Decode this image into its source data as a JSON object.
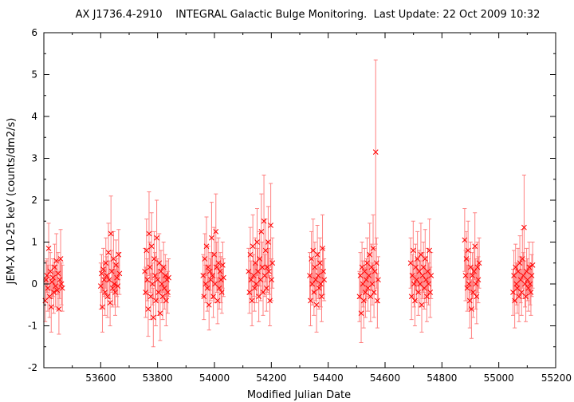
{
  "chart_data": {
    "type": "scatter",
    "title": "AX J1736.4-2910    INTEGRAL Galactic Bulge Monitoring.  Last Update: 22 Oct 2009 10:32",
    "xlabel": "Modified Julian Date",
    "ylabel": "JEM-X 10-25 keV (counts/dm2/s)",
    "xlim": [
      53400,
      55200
    ],
    "ylim": [
      -2,
      6
    ],
    "x_ticks": [
      "53600",
      "53800",
      "54000",
      "54200",
      "54400",
      "54600",
      "54800",
      "55000",
      "55200"
    ],
    "y_ticks": [
      "-2",
      "-1",
      "0",
      "1",
      "2",
      "3",
      "4",
      "5",
      "6"
    ],
    "grid": false,
    "legend": "none",
    "marker": "x",
    "colors": {
      "points": "#ff0000",
      "error_bars": "#ff8080",
      "axes": "#000000"
    },
    "series": [
      {
        "points": [
          [
            53405,
            -0.4,
            0.5
          ],
          [
            53408,
            0.1,
            0.45
          ],
          [
            53411,
            0.2,
            0.4
          ],
          [
            53414,
            -0.1,
            0.55
          ],
          [
            53417,
            0.85,
            0.6
          ],
          [
            53420,
            -0.3,
            0.5
          ],
          [
            53423,
            0.3,
            0.45
          ],
          [
            53426,
            -0.55,
            0.6
          ],
          [
            53429,
            0.05,
            0.4
          ],
          [
            53432,
            0.15,
            0.45
          ],
          [
            53435,
            -0.2,
            0.5
          ],
          [
            53438,
            0.4,
            0.55
          ],
          [
            53441,
            -0.05,
            0.5
          ],
          [
            53444,
            0.55,
            0.65
          ],
          [
            53447,
            -0.15,
            0.45
          ],
          [
            53450,
            0.25,
            0.5
          ],
          [
            53453,
            -0.6,
            0.6
          ],
          [
            53456,
            0.1,
            0.45
          ],
          [
            53459,
            0.6,
            0.7
          ],
          [
            53462,
            0.0,
            0.5
          ],
          [
            53465,
            -0.1,
            0.55
          ],
          [
            53600,
            -0.05,
            0.55
          ],
          [
            53603,
            0.25,
            0.45
          ],
          [
            53606,
            -0.55,
            0.6
          ],
          [
            53609,
            0.35,
            0.5
          ],
          [
            53612,
            0.1,
            0.4
          ],
          [
            53615,
            -0.2,
            0.55
          ],
          [
            53618,
            0.5,
            0.6
          ],
          [
            53621,
            0.2,
            0.45
          ],
          [
            53624,
            -0.3,
            0.5
          ],
          [
            53627,
            0.75,
            0.7
          ],
          [
            53630,
            0.1,
            0.45
          ],
          [
            53633,
            -0.45,
            0.55
          ],
          [
            53636,
            1.2,
            0.9
          ],
          [
            53639,
            0.3,
            0.5
          ],
          [
            53642,
            -0.1,
            0.45
          ],
          [
            53645,
            0.6,
            0.65
          ],
          [
            53648,
            0.0,
            0.5
          ],
          [
            53651,
            -0.2,
            0.55
          ],
          [
            53654,
            0.45,
            0.6
          ],
          [
            53657,
            0.15,
            0.45
          ],
          [
            53660,
            -0.05,
            0.5
          ],
          [
            53663,
            0.7,
            0.6
          ],
          [
            53666,
            0.25,
            0.5
          ],
          [
            53755,
            0.3,
            0.55
          ],
          [
            53758,
            -0.2,
            0.6
          ],
          [
            53761,
            0.8,
            0.75
          ],
          [
            53764,
            0.1,
            0.5
          ],
          [
            53767,
            -0.6,
            0.65
          ],
          [
            53770,
            1.2,
            1.0
          ],
          [
            53773,
            0.4,
            0.6
          ],
          [
            53776,
            -0.3,
            0.55
          ],
          [
            53779,
            0.9,
            0.8
          ],
          [
            53782,
            0.0,
            0.5
          ],
          [
            53785,
            -0.8,
            0.7
          ],
          [
            53788,
            0.6,
            0.65
          ],
          [
            53791,
            0.2,
            0.55
          ],
          [
            53794,
            -0.4,
            0.6
          ],
          [
            53797,
            1.1,
            0.9
          ],
          [
            53800,
            0.1,
            0.5
          ],
          [
            53803,
            -0.2,
            0.55
          ],
          [
            53806,
            0.5,
            0.7
          ],
          [
            53809,
            -0.7,
            0.65
          ],
          [
            53812,
            0.3,
            0.5
          ],
          [
            53815,
            0.0,
            0.45
          ],
          [
            53818,
            -0.3,
            0.55
          ],
          [
            53821,
            0.4,
            0.6
          ],
          [
            53824,
            -0.1,
            0.5
          ],
          [
            53827,
            0.2,
            0.5
          ],
          [
            53830,
            -0.4,
            0.6
          ],
          [
            53833,
            0.1,
            0.45
          ],
          [
            53836,
            -0.2,
            0.5
          ],
          [
            53839,
            0.15,
            0.45
          ],
          [
            53960,
            0.2,
            0.5
          ],
          [
            53963,
            -0.3,
            0.55
          ],
          [
            53966,
            0.6,
            0.6
          ],
          [
            53969,
            0.0,
            0.45
          ],
          [
            53972,
            0.9,
            0.7
          ],
          [
            53975,
            -0.1,
            0.55
          ],
          [
            53978,
            0.4,
            0.5
          ],
          [
            53981,
            -0.5,
            0.6
          ],
          [
            53984,
            0.3,
            0.45
          ],
          [
            53987,
            0.1,
            0.5
          ],
          [
            53990,
            1.1,
            0.85
          ],
          [
            53993,
            0.2,
            0.55
          ],
          [
            53996,
            -0.3,
            0.5
          ],
          [
            53999,
            0.7,
            0.65
          ],
          [
            54002,
            0.0,
            0.45
          ],
          [
            54005,
            1.25,
            0.9
          ],
          [
            54008,
            0.4,
            0.6
          ],
          [
            54011,
            -0.4,
            0.55
          ],
          [
            54014,
            0.5,
            0.6
          ],
          [
            54017,
            -0.1,
            0.5
          ],
          [
            54020,
            0.3,
            0.45
          ],
          [
            54023,
            0.1,
            0.55
          ],
          [
            54026,
            -0.2,
            0.5
          ],
          [
            54029,
            0.45,
            0.55
          ],
          [
            54032,
            0.15,
            0.45
          ],
          [
            54120,
            0.3,
            0.55
          ],
          [
            54123,
            -0.2,
            0.5
          ],
          [
            54126,
            0.7,
            0.65
          ],
          [
            54129,
            0.1,
            0.45
          ],
          [
            54132,
            -0.4,
            0.6
          ],
          [
            54135,
            0.9,
            0.75
          ],
          [
            54138,
            0.2,
            0.5
          ],
          [
            54141,
            -0.1,
            0.55
          ],
          [
            54144,
            0.5,
            0.6
          ],
          [
            54147,
            0.0,
            0.45
          ],
          [
            54150,
            1.0,
            0.8
          ],
          [
            54153,
            0.3,
            0.55
          ],
          [
            54156,
            -0.3,
            0.6
          ],
          [
            54159,
            0.6,
            0.65
          ],
          [
            54162,
            0.1,
            0.5
          ],
          [
            54165,
            1.25,
            0.9
          ],
          [
            54168,
            0.4,
            0.6
          ],
          [
            54171,
            -0.2,
            0.55
          ],
          [
            54174,
            1.5,
            1.1
          ],
          [
            54177,
            0.2,
            0.5
          ],
          [
            54180,
            0.8,
            0.75
          ],
          [
            54183,
            -0.1,
            0.55
          ],
          [
            54186,
            0.4,
            0.6
          ],
          [
            54189,
            1.0,
            0.85
          ],
          [
            54192,
            0.3,
            0.55
          ],
          [
            54195,
            -0.4,
            0.6
          ],
          [
            54198,
            1.4,
            1.0
          ],
          [
            54201,
            0.1,
            0.5
          ],
          [
            54204,
            0.5,
            0.6
          ],
          [
            54335,
            0.2,
            0.55
          ],
          [
            54338,
            -0.4,
            0.6
          ],
          [
            54341,
            0.6,
            0.65
          ],
          [
            54344,
            0.0,
            0.5
          ],
          [
            54347,
            0.8,
            0.75
          ],
          [
            54350,
            -0.2,
            0.55
          ],
          [
            54353,
            0.4,
            0.6
          ],
          [
            54356,
            0.1,
            0.5
          ],
          [
            54359,
            -0.5,
            0.65
          ],
          [
            54362,
            0.7,
            0.7
          ],
          [
            54365,
            0.2,
            0.55
          ],
          [
            54368,
            -0.1,
            0.5
          ],
          [
            54371,
            0.5,
            0.6
          ],
          [
            54374,
            0.0,
            0.55
          ],
          [
            54377,
            -0.3,
            0.6
          ],
          [
            54380,
            0.85,
            0.8
          ],
          [
            54383,
            0.3,
            0.55
          ],
          [
            54386,
            0.1,
            0.5
          ],
          [
            54510,
            -0.3,
            0.6
          ],
          [
            54513,
            0.2,
            0.55
          ],
          [
            54516,
            -0.7,
            0.7
          ],
          [
            54519,
            0.4,
            0.6
          ],
          [
            54522,
            0.0,
            0.55
          ],
          [
            54525,
            -0.4,
            0.65
          ],
          [
            54528,
            0.3,
            0.55
          ],
          [
            54531,
            -0.2,
            0.6
          ],
          [
            54534,
            0.1,
            0.5
          ],
          [
            54537,
            0.5,
            0.6
          ],
          [
            54540,
            -0.1,
            0.55
          ],
          [
            54543,
            0.2,
            0.5
          ],
          [
            54546,
            0.7,
            0.75
          ],
          [
            54549,
            -0.3,
            0.6
          ],
          [
            54552,
            0.4,
            0.55
          ],
          [
            54555,
            0.0,
            0.5
          ],
          [
            54558,
            0.85,
            0.8
          ],
          [
            54561,
            -0.2,
            0.6
          ],
          [
            54564,
            0.3,
            0.55
          ],
          [
            54567,
            3.15,
            2.2
          ],
          [
            54570,
            0.5,
            0.6
          ],
          [
            54573,
            -0.4,
            0.65
          ],
          [
            54576,
            0.1,
            0.55
          ],
          [
            54690,
            0.5,
            0.6
          ],
          [
            54693,
            -0.3,
            0.55
          ],
          [
            54696,
            0.2,
            0.5
          ],
          [
            54699,
            0.8,
            0.7
          ],
          [
            54702,
            0.0,
            0.55
          ],
          [
            54705,
            -0.4,
            0.6
          ],
          [
            54708,
            0.4,
            0.55
          ],
          [
            54711,
            0.1,
            0.5
          ],
          [
            54714,
            0.6,
            0.65
          ],
          [
            54717,
            -0.2,
            0.55
          ],
          [
            54720,
            0.3,
            0.5
          ],
          [
            54723,
            0.0,
            0.55
          ],
          [
            54726,
            0.7,
            0.75
          ],
          [
            54729,
            -0.5,
            0.65
          ],
          [
            54732,
            0.2,
            0.55
          ],
          [
            54735,
            0.4,
            0.6
          ],
          [
            54738,
            -0.1,
            0.5
          ],
          [
            54741,
            0.6,
            0.7
          ],
          [
            54744,
            0.1,
            0.55
          ],
          [
            54747,
            -0.3,
            0.6
          ],
          [
            54750,
            0.3,
            0.55
          ],
          [
            54753,
            0.0,
            0.5
          ],
          [
            54756,
            0.8,
            0.75
          ],
          [
            54759,
            -0.2,
            0.6
          ],
          [
            54762,
            0.2,
            0.55
          ],
          [
            54880,
            1.05,
            0.75
          ],
          [
            54883,
            0.2,
            0.6
          ],
          [
            54886,
            0.6,
            0.65
          ],
          [
            54889,
            -0.1,
            0.55
          ],
          [
            54892,
            0.8,
            0.7
          ],
          [
            54895,
            0.0,
            0.6
          ],
          [
            54898,
            -0.4,
            0.65
          ],
          [
            54901,
            0.4,
            0.6
          ],
          [
            54904,
            -0.6,
            0.7
          ],
          [
            54907,
            0.2,
            0.55
          ],
          [
            54910,
            -0.2,
            0.6
          ],
          [
            54913,
            0.3,
            0.55
          ],
          [
            54916,
            0.9,
            0.8
          ],
          [
            54919,
            0.0,
            0.6
          ],
          [
            54922,
            -0.3,
            0.65
          ],
          [
            54925,
            0.4,
            0.6
          ],
          [
            54928,
            0.1,
            0.55
          ],
          [
            54931,
            0.5,
            0.6
          ],
          [
            55050,
            -0.2,
            0.55
          ],
          [
            55053,
            0.2,
            0.6
          ],
          [
            55056,
            -0.4,
            0.65
          ],
          [
            55059,
            0.4,
            0.55
          ],
          [
            55062,
            0.0,
            0.5
          ],
          [
            55065,
            -0.1,
            0.6
          ],
          [
            55068,
            0.3,
            0.55
          ],
          [
            55071,
            -0.3,
            0.6
          ],
          [
            55074,
            0.5,
            0.65
          ],
          [
            55077,
            0.1,
            0.55
          ],
          [
            55080,
            -0.2,
            0.55
          ],
          [
            55083,
            0.6,
            0.7
          ],
          [
            55086,
            0.2,
            0.55
          ],
          [
            55089,
            1.35,
            1.25
          ],
          [
            55092,
            0.0,
            0.55
          ],
          [
            55095,
            -0.3,
            0.6
          ],
          [
            55098,
            0.3,
            0.55
          ],
          [
            55101,
            0.1,
            0.5
          ],
          [
            55104,
            -0.1,
            0.55
          ],
          [
            55107,
            0.4,
            0.6
          ],
          [
            55110,
            0.0,
            0.5
          ],
          [
            55113,
            -0.2,
            0.55
          ],
          [
            55116,
            0.2,
            0.5
          ],
          [
            55119,
            0.45,
            0.55
          ]
        ]
      }
    ]
  }
}
